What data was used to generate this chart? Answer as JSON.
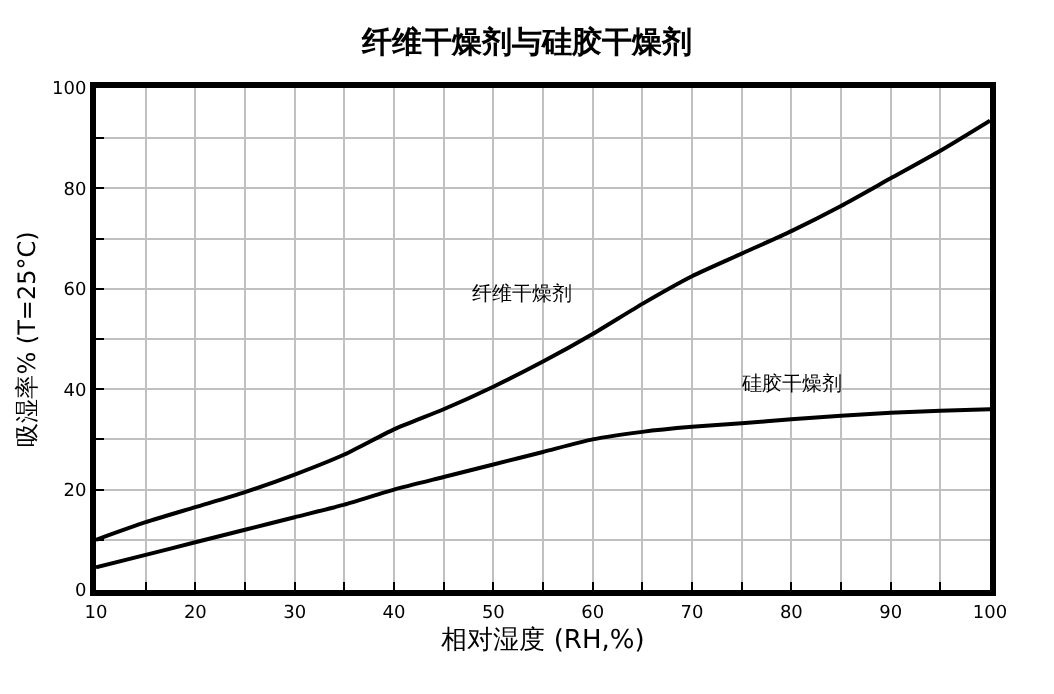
{
  "chart_data": {
    "type": "line",
    "title": "纤维干燥剂与硅胶干燥剂",
    "xlabel": "相对湿度 (RH,%)",
    "ylabel": "吸湿率% (T=25°C)",
    "x": [
      10,
      15,
      20,
      25,
      30,
      35,
      40,
      45,
      50,
      55,
      60,
      65,
      70,
      75,
      80,
      85,
      90,
      95,
      100
    ],
    "series": [
      {
        "name": "纤维干燥剂",
        "color": "#000000",
        "values": [
          10,
          13.5,
          16.5,
          19.5,
          23,
          27,
          32,
          36,
          40.5,
          45.5,
          51,
          57,
          62.5,
          67,
          71.5,
          76.5,
          82,
          87.5,
          93.5
        ]
      },
      {
        "name": "硅胶干燥剂",
        "color": "#000000",
        "values": [
          4.5,
          7,
          9.5,
          12,
          14.5,
          17,
          20,
          22.5,
          25,
          27.5,
          30,
          31.5,
          32.5,
          33.2,
          34,
          34.7,
          35.3,
          35.7,
          36
        ]
      }
    ],
    "xlim": [
      10,
      100
    ],
    "ylim": [
      0,
      100
    ],
    "xticks": [
      10,
      {
        "value": 15,
        "label": null
      },
      20,
      {
        "value": 25,
        "label": null
      },
      30,
      {
        "value": 35,
        "label": null
      },
      40,
      {
        "value": 45,
        "label": null
      },
      50,
      {
        "value": 55,
        "label": null
      },
      60,
      {
        "value": 65,
        "label": null
      },
      70,
      {
        "value": 75,
        "label": null
      },
      80,
      {
        "value": 85,
        "label": null
      },
      90,
      {
        "value": 95,
        "label": null
      },
      100
    ],
    "yticks": [
      0,
      {
        "value": 10,
        "label": null
      },
      20,
      {
        "value": 30,
        "label": null
      },
      40,
      {
        "value": 50,
        "label": null
      },
      60,
      {
        "value": 70,
        "label": null
      },
      80,
      {
        "value": 90,
        "label": null
      },
      100
    ],
    "grid": true,
    "legend": false,
    "marker": "none",
    "line_style": "solid"
  }
}
